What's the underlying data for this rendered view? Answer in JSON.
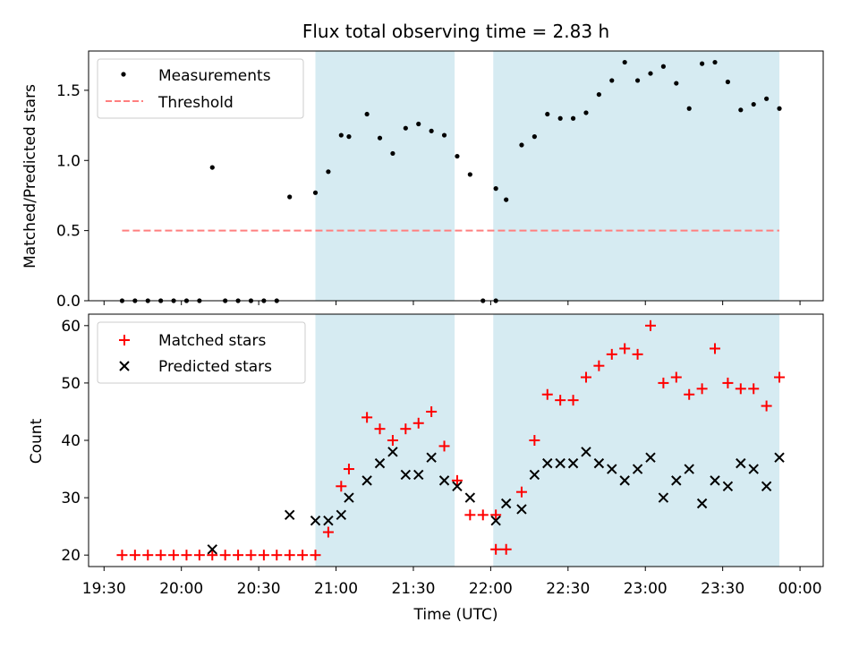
{
  "colors": {
    "shade": "#add8e6",
    "measurement": "#000000",
    "threshold": "#ff7f7f",
    "matched": "#ff0000",
    "predicted": "#000000"
  },
  "chart_data": [
    {
      "type": "scatter",
      "title": "Flux total observing time = 2.83 h",
      "xlabel": "",
      "ylabel": "Matched/Predicted stars",
      "xlim": [
        "19:24",
        "00:09"
      ],
      "ylim": [
        0,
        1.78
      ],
      "yticks": [
        0.0,
        0.5,
        1.0,
        1.5
      ],
      "ytick_labels": [
        "0.0",
        "0.5",
        "1.0",
        "1.5"
      ],
      "legend_position": "top-left",
      "shaded_intervals": [
        [
          "20:52",
          "21:46"
        ],
        [
          "22:01",
          "23:52"
        ]
      ],
      "series": [
        {
          "name": "Measurements",
          "marker": "dot",
          "points": [
            [
              "19:37",
              0.0
            ],
            [
              "19:42",
              0.0
            ],
            [
              "19:47",
              0.0
            ],
            [
              "19:52",
              0.0
            ],
            [
              "19:57",
              0.0
            ],
            [
              "20:02",
              0.0
            ],
            [
              "20:07",
              0.0
            ],
            [
              "20:12",
              0.95
            ],
            [
              "20:17",
              0.0
            ],
            [
              "20:22",
              0.0
            ],
            [
              "20:27",
              0.0
            ],
            [
              "20:32",
              0.0
            ],
            [
              "20:37",
              0.0
            ],
            [
              "20:42",
              0.74
            ],
            [
              "20:52",
              0.77
            ],
            [
              "20:57",
              0.92
            ],
            [
              "21:02",
              1.18
            ],
            [
              "21:05",
              1.17
            ],
            [
              "21:12",
              1.33
            ],
            [
              "21:17",
              1.16
            ],
            [
              "21:22",
              1.05
            ],
            [
              "21:27",
              1.23
            ],
            [
              "21:32",
              1.26
            ],
            [
              "21:37",
              1.21
            ],
            [
              "21:42",
              1.18
            ],
            [
              "21:47",
              1.03
            ],
            [
              "21:52",
              0.9
            ],
            [
              "21:57",
              0.0
            ],
            [
              "22:02",
              0.0
            ],
            [
              "22:02",
              0.8
            ],
            [
              "22:06",
              0.72
            ],
            [
              "22:12",
              1.11
            ],
            [
              "22:17",
              1.17
            ],
            [
              "22:22",
              1.33
            ],
            [
              "22:27",
              1.3
            ],
            [
              "22:32",
              1.3
            ],
            [
              "22:37",
              1.34
            ],
            [
              "22:42",
              1.47
            ],
            [
              "22:47",
              1.57
            ],
            [
              "22:52",
              1.7
            ],
            [
              "22:57",
              1.57
            ],
            [
              "23:02",
              1.62
            ],
            [
              "23:07",
              1.67
            ],
            [
              "23:12",
              1.55
            ],
            [
              "23:17",
              1.37
            ],
            [
              "23:22",
              1.69
            ],
            [
              "23:27",
              1.7
            ],
            [
              "23:32",
              1.56
            ],
            [
              "23:37",
              1.36
            ],
            [
              "23:42",
              1.4
            ],
            [
              "23:47",
              1.44
            ],
            [
              "23:52",
              1.37
            ]
          ]
        },
        {
          "name": "Threshold",
          "marker": "dashed-line",
          "points": [
            [
              "19:37",
              0.5
            ],
            [
              "23:52",
              0.5
            ]
          ]
        }
      ]
    },
    {
      "type": "scatter",
      "title": "",
      "xlabel": "Time (UTC)",
      "ylabel": "Count",
      "xlim": [
        "19:24",
        "00:09"
      ],
      "ylim": [
        18,
        62
      ],
      "yticks": [
        20,
        30,
        40,
        50,
        60
      ],
      "ytick_labels": [
        "20",
        "30",
        "40",
        "50",
        "60"
      ],
      "xticks": [
        "19:30",
        "20:00",
        "20:30",
        "21:00",
        "21:30",
        "22:00",
        "22:30",
        "23:00",
        "23:30",
        "00:00"
      ],
      "xtick_labels": [
        "19:30",
        "20:00",
        "20:30",
        "21:00",
        "21:30",
        "22:00",
        "22:30",
        "23:00",
        "23:30",
        "00:00"
      ],
      "legend_position": "top-left",
      "shaded_intervals": [
        [
          "20:52",
          "21:46"
        ],
        [
          "22:01",
          "23:52"
        ]
      ],
      "series": [
        {
          "name": "Matched stars",
          "marker": "plus",
          "points": [
            [
              "19:37",
              20
            ],
            [
              "19:42",
              20
            ],
            [
              "19:47",
              20
            ],
            [
              "19:52",
              20
            ],
            [
              "19:57",
              20
            ],
            [
              "20:02",
              20
            ],
            [
              "20:07",
              20
            ],
            [
              "20:12",
              20
            ],
            [
              "20:17",
              20
            ],
            [
              "20:22",
              20
            ],
            [
              "20:27",
              20
            ],
            [
              "20:32",
              20
            ],
            [
              "20:37",
              20
            ],
            [
              "20:42",
              20
            ],
            [
              "20:47",
              20
            ],
            [
              "20:52",
              20
            ],
            [
              "20:57",
              24
            ],
            [
              "21:02",
              32
            ],
            [
              "21:05",
              35
            ],
            [
              "21:12",
              44
            ],
            [
              "21:17",
              42
            ],
            [
              "21:22",
              40
            ],
            [
              "21:27",
              42
            ],
            [
              "21:32",
              43
            ],
            [
              "21:37",
              45
            ],
            [
              "21:42",
              39
            ],
            [
              "21:47",
              33
            ],
            [
              "21:52",
              27
            ],
            [
              "21:57",
              27
            ],
            [
              "22:02",
              27
            ],
            [
              "22:02",
              21
            ],
            [
              "22:06",
              21
            ],
            [
              "22:12",
              31
            ],
            [
              "22:17",
              40
            ],
            [
              "22:22",
              48
            ],
            [
              "22:27",
              47
            ],
            [
              "22:32",
              47
            ],
            [
              "22:37",
              51
            ],
            [
              "22:42",
              53
            ],
            [
              "22:47",
              55
            ],
            [
              "22:52",
              56
            ],
            [
              "22:57",
              55
            ],
            [
              "23:02",
              60
            ],
            [
              "23:07",
              50
            ],
            [
              "23:12",
              51
            ],
            [
              "23:17",
              48
            ],
            [
              "23:22",
              49
            ],
            [
              "23:27",
              56
            ],
            [
              "23:32",
              50
            ],
            [
              "23:37",
              49
            ],
            [
              "23:42",
              49
            ],
            [
              "23:47",
              46
            ],
            [
              "23:52",
              51
            ]
          ]
        },
        {
          "name": "Predicted stars",
          "marker": "x",
          "points": [
            [
              "20:12",
              21
            ],
            [
              "20:42",
              27
            ],
            [
              "20:52",
              26
            ],
            [
              "20:57",
              26
            ],
            [
              "21:02",
              27
            ],
            [
              "21:05",
              30
            ],
            [
              "21:12",
              33
            ],
            [
              "21:17",
              36
            ],
            [
              "21:22",
              38
            ],
            [
              "21:27",
              34
            ],
            [
              "21:32",
              34
            ],
            [
              "21:37",
              37
            ],
            [
              "21:42",
              33
            ],
            [
              "21:47",
              32
            ],
            [
              "21:52",
              30
            ],
            [
              "22:02",
              26
            ],
            [
              "22:06",
              29
            ],
            [
              "22:12",
              28
            ],
            [
              "22:17",
              34
            ],
            [
              "22:22",
              36
            ],
            [
              "22:27",
              36
            ],
            [
              "22:32",
              36
            ],
            [
              "22:37",
              38
            ],
            [
              "22:42",
              36
            ],
            [
              "22:47",
              35
            ],
            [
              "22:52",
              33
            ],
            [
              "22:57",
              35
            ],
            [
              "23:02",
              37
            ],
            [
              "23:07",
              30
            ],
            [
              "23:12",
              33
            ],
            [
              "23:17",
              35
            ],
            [
              "23:22",
              29
            ],
            [
              "23:27",
              33
            ],
            [
              "23:32",
              32
            ],
            [
              "23:37",
              36
            ],
            [
              "23:42",
              35
            ],
            [
              "23:47",
              32
            ],
            [
              "23:52",
              37
            ]
          ]
        }
      ]
    }
  ]
}
